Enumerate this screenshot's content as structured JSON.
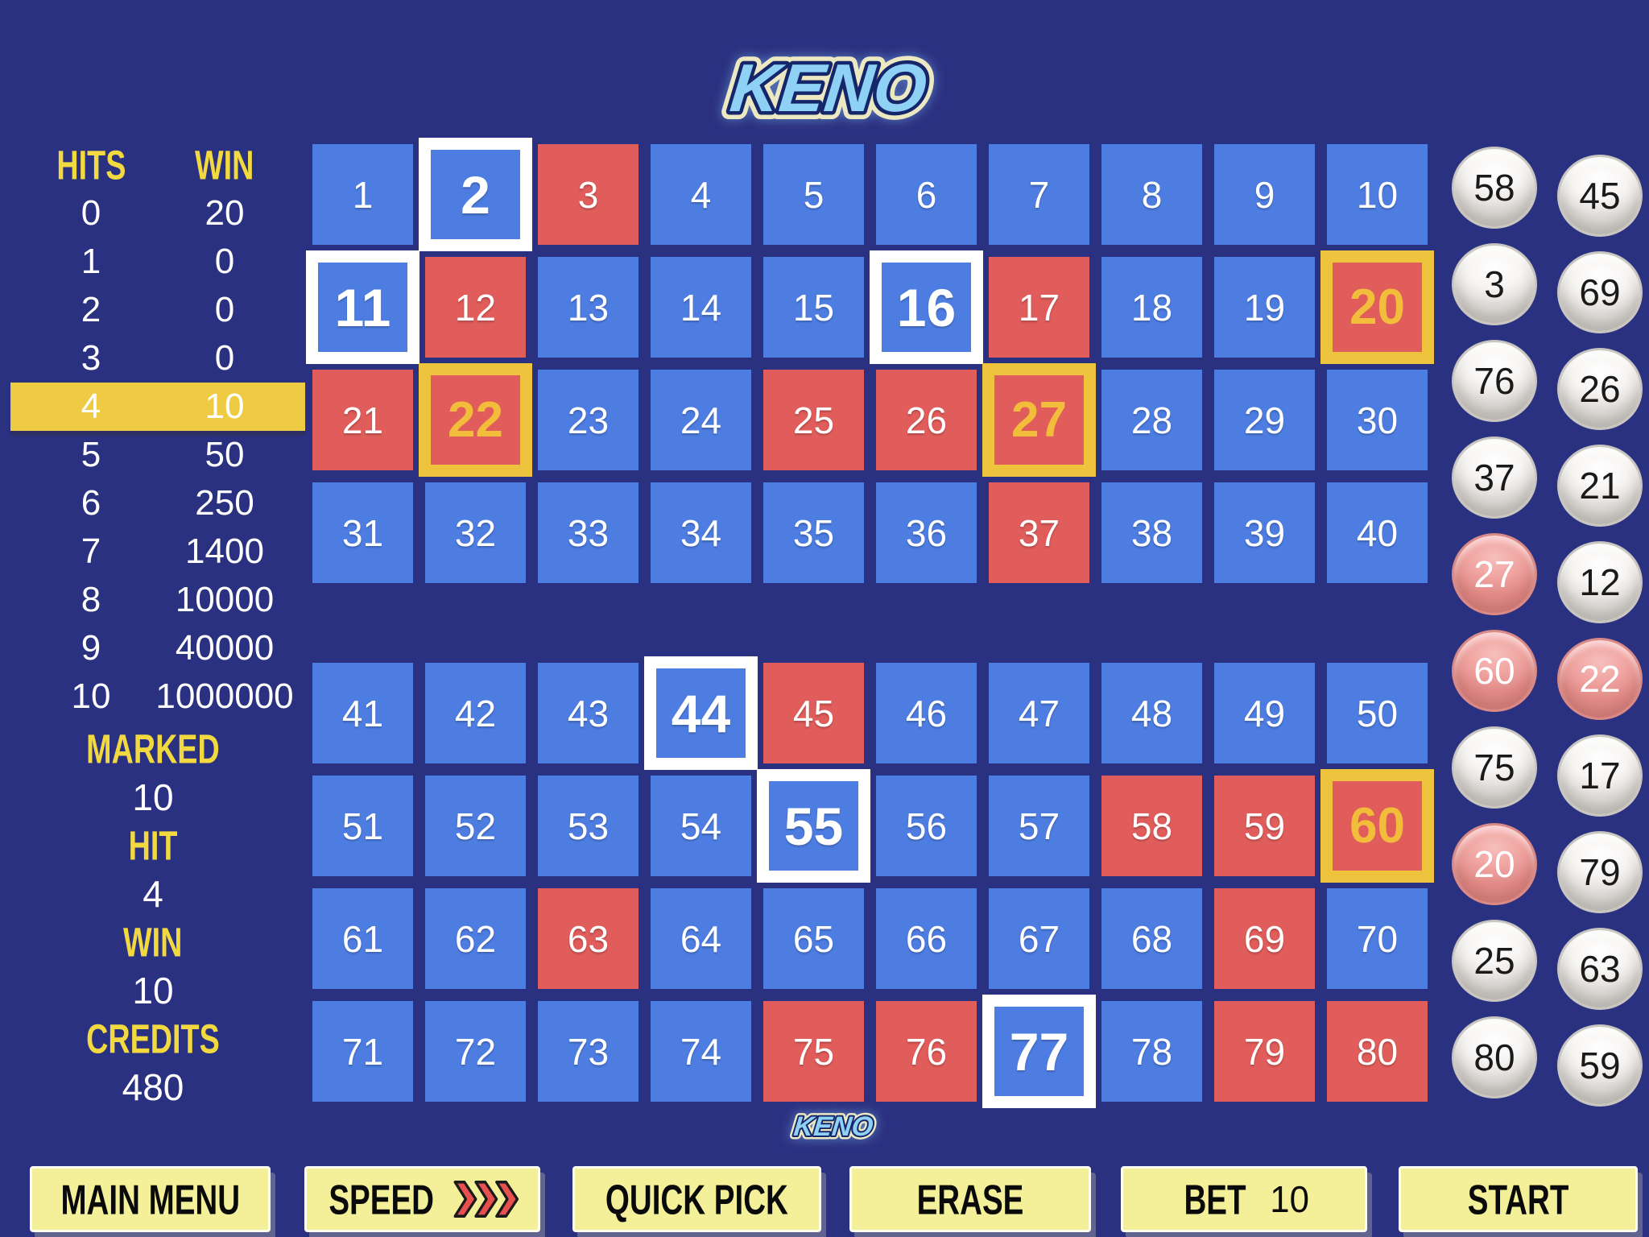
{
  "title_logo": "KENO",
  "footer_logo": "KENO",
  "colors": {
    "bg": "#2b3181",
    "cell_blue": "#4e7de2",
    "cell_red": "#e05d5b",
    "hit_ring": "#eec43f",
    "hit_number": "#f2bd3a",
    "highlight_bar": "#eecb43",
    "label_yellow": "#f2d93f",
    "button_fill": "#f4f09a",
    "logo_blue": "#8ed1f5",
    "logo_outline": "#16266b",
    "logo_outer": "#ece9c2",
    "chevron_red": "#e8504f",
    "ball_hit_pink": "#eb9b98"
  },
  "paytable": {
    "hits_header": "HITS",
    "win_header": "WIN",
    "highlighted_hits": 4,
    "rows": [
      {
        "hits": "0",
        "win": "20"
      },
      {
        "hits": "1",
        "win": "0"
      },
      {
        "hits": "2",
        "win": "0"
      },
      {
        "hits": "3",
        "win": "0"
      },
      {
        "hits": "4",
        "win": "10"
      },
      {
        "hits": "5",
        "win": "50"
      },
      {
        "hits": "6",
        "win": "250"
      },
      {
        "hits": "7",
        "win": "1400"
      },
      {
        "hits": "8",
        "win": "10000"
      },
      {
        "hits": "9",
        "win": "40000"
      },
      {
        "hits": "10",
        "win": "1000000"
      }
    ]
  },
  "stats": [
    {
      "id": "marked",
      "label": "MARKED",
      "value": "10"
    },
    {
      "id": "hit",
      "label": "HIT",
      "value": "4"
    },
    {
      "id": "win",
      "label": "WIN",
      "value": "10"
    },
    {
      "id": "credits",
      "label": "CREDITS",
      "value": "480"
    }
  ],
  "board": {
    "first_number": 1,
    "last_number": 80,
    "marked": [
      2,
      11,
      16,
      20,
      22,
      27,
      44,
      55,
      60,
      77
    ],
    "drawn_left_column": [
      58,
      3,
      76,
      37,
      27,
      60,
      75,
      20,
      25,
      80
    ],
    "drawn_right_column": [
      45,
      69,
      26,
      21,
      12,
      22,
      17,
      79,
      63,
      59
    ]
  },
  "buttons": [
    {
      "id": "main-menu",
      "label": "MAIN MENU"
    },
    {
      "id": "speed",
      "label": "SPEED",
      "icon": "triple-chevron-right"
    },
    {
      "id": "quick-pick",
      "label": "QUICK PICK"
    },
    {
      "id": "erase",
      "label": "ERASE"
    },
    {
      "id": "bet",
      "label": "BET",
      "value": "10"
    },
    {
      "id": "start",
      "label": "START"
    }
  ]
}
